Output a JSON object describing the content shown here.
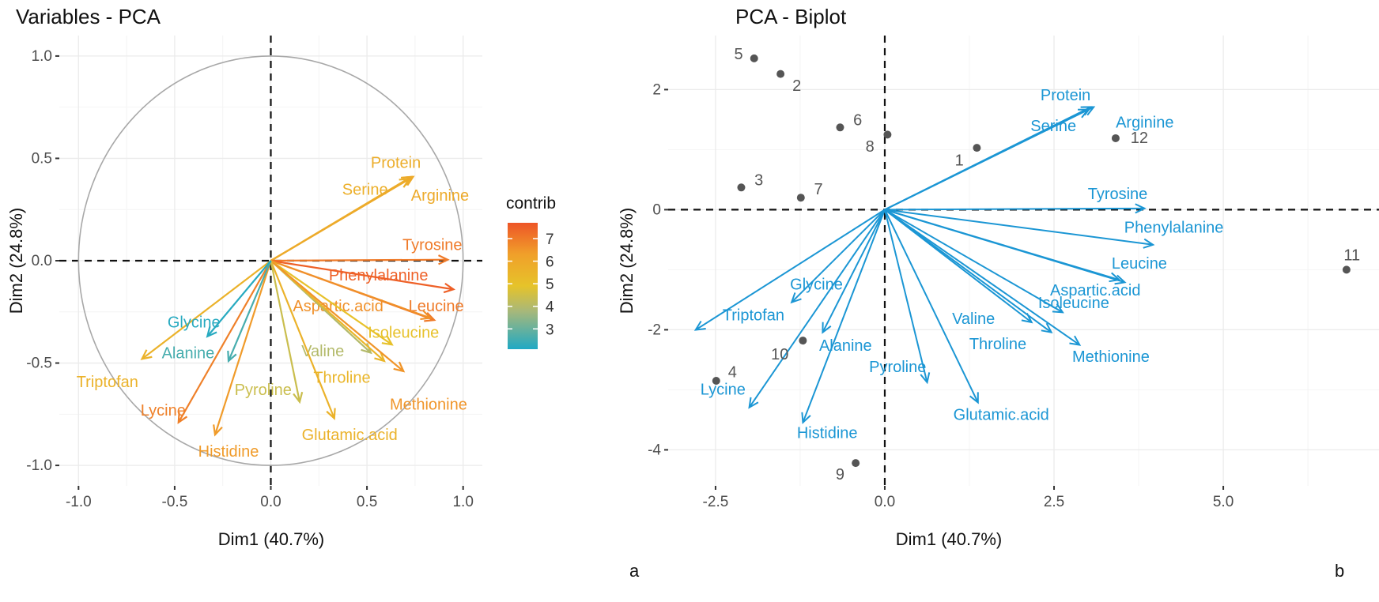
{
  "chart_data": [
    {
      "type": "scatter",
      "subtype": "pca-variable-correlation-circle",
      "title": "Variables - PCA",
      "xlabel": "Dim1 (40.7%)",
      "ylabel": "Dim2 (24.8%)",
      "xlim": [
        -1.1,
        1.1
      ],
      "ylim": [
        -1.1,
        1.1
      ],
      "xticks": [
        -1.0,
        -0.5,
        0.0,
        0.5,
        1.0
      ],
      "yticks": [
        -1.0,
        -0.5,
        0.0,
        0.5,
        1.0
      ],
      "xtick_labels": [
        "-1.0",
        "-0.5",
        "0.0",
        "0.5",
        "1.0"
      ],
      "ytick_labels": [
        "-1.0",
        "-0.5",
        "0.0",
        "0.5",
        "1.0"
      ],
      "grid": true,
      "panel_label": "a",
      "legend": {
        "title": "contrib",
        "ticks": [
          3,
          4,
          5,
          6,
          7
        ],
        "tick_labels": [
          "3",
          "4",
          "5",
          "6",
          "7"
        ],
        "range": [
          2.1,
          7.7
        ],
        "placement": "right",
        "colors": [
          "#1fa9c4",
          "#a7b87a",
          "#e6c32a",
          "#f0a02a",
          "#ee5527"
        ]
      },
      "variables": [
        {
          "name": "Protein",
          "x": 0.73,
          "y": 0.41,
          "contrib": 5.8
        },
        {
          "name": "Serine",
          "x": 0.72,
          "y": 0.4,
          "contrib": 5.7
        },
        {
          "name": "Arginine",
          "x": 0.74,
          "y": 0.41,
          "contrib": 5.9
        },
        {
          "name": "Tyrosine",
          "x": 0.92,
          "y": 0.005,
          "contrib": 7.0
        },
        {
          "name": "Phenylalanine",
          "x": 0.95,
          "y": -0.14,
          "contrib": 7.5
        },
        {
          "name": "Leucine",
          "x": 0.85,
          "y": -0.29,
          "contrib": 7.0
        },
        {
          "name": "Aspartic.acid",
          "x": 0.83,
          "y": -0.28,
          "contrib": 6.6
        },
        {
          "name": "Isoleucine",
          "x": 0.63,
          "y": -0.41,
          "contrib": 5.0
        },
        {
          "name": "Valine",
          "x": 0.52,
          "y": -0.45,
          "contrib": 4.0
        },
        {
          "name": "Throline",
          "x": 0.59,
          "y": -0.49,
          "contrib": 5.4
        },
        {
          "name": "Methionine",
          "x": 0.69,
          "y": -0.54,
          "contrib": 6.5
        },
        {
          "name": "Glutamic.acid",
          "x": 0.33,
          "y": -0.77,
          "contrib": 5.6
        },
        {
          "name": "Pyroline",
          "x": 0.15,
          "y": -0.69,
          "contrib": 4.4
        },
        {
          "name": "Histidine",
          "x": -0.29,
          "y": -0.85,
          "contrib": 6.4
        },
        {
          "name": "Lycine",
          "x": -0.48,
          "y": -0.79,
          "contrib": 6.9
        },
        {
          "name": "Triptofan",
          "x": -0.67,
          "y": -0.48,
          "contrib": 5.6
        },
        {
          "name": "Alanine",
          "x": -0.22,
          "y": -0.49,
          "contrib": 2.6
        },
        {
          "name": "Glycine",
          "x": -0.33,
          "y": -0.37,
          "contrib": 2.2
        }
      ]
    },
    {
      "type": "scatter",
      "subtype": "pca-biplot",
      "title": "PCA - Biplot",
      "xlabel": "Dim1 (40.7%)",
      "ylabel": "Dim2 (24.8%)",
      "xlim": [
        -3.2,
        7.3
      ],
      "ylim": [
        -4.6,
        2.9
      ],
      "xticks": [
        -2.5,
        0.0,
        2.5,
        5.0
      ],
      "yticks": [
        -4,
        -2,
        0,
        2
      ],
      "xtick_labels": [
        "-2.5",
        "0.0",
        "2.5",
        "5.0"
      ],
      "ytick_labels": [
        "-4",
        "-2",
        "0",
        "2"
      ],
      "grid": true,
      "panel_label": "b",
      "arrow_scale": 4.17,
      "arrow_color": "#1b96d4",
      "point_color": "#555555",
      "individuals": [
        {
          "label": "1",
          "x": 1.36,
          "y": 1.03
        },
        {
          "label": "2",
          "x": -1.54,
          "y": 2.26
        },
        {
          "label": "3",
          "x": -2.12,
          "y": 0.37
        },
        {
          "label": "4",
          "x": -2.49,
          "y": -2.85
        },
        {
          "label": "5",
          "x": -1.93,
          "y": 2.52
        },
        {
          "label": "6",
          "x": -0.66,
          "y": 1.37
        },
        {
          "label": "7",
          "x": -1.24,
          "y": 0.2
        },
        {
          "label": "8",
          "x": 0.04,
          "y": 1.25
        },
        {
          "label": "9",
          "x": -0.43,
          "y": -4.22
        },
        {
          "label": "10",
          "x": -1.21,
          "y": -2.18
        },
        {
          "label": "11",
          "x": 6.82,
          "y": -1.0
        },
        {
          "label": "12",
          "x": 3.41,
          "y": 1.19
        }
      ]
    }
  ]
}
